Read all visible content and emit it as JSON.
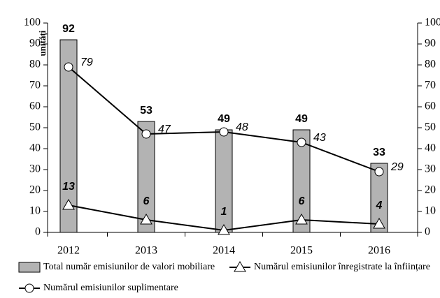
{
  "chart_data": {
    "type": "bar_line",
    "y_label": "unități",
    "categories": [
      "2012",
      "2013",
      "2014",
      "2015",
      "2016"
    ],
    "series": [
      {
        "name": "Total număr emisiunilor de valori mobiliare",
        "type": "bar",
        "color": "#b3b3b3",
        "values": [
          92,
          53,
          49,
          49,
          33
        ]
      },
      {
        "name": "Numărul emisiunilor înregistrate la înființare",
        "type": "line",
        "marker": "triangle",
        "color": "#000000",
        "values": [
          13,
          6,
          1,
          6,
          4
        ]
      },
      {
        "name": "Numărul emisiunilor suplimentare",
        "type": "line",
        "marker": "circle",
        "color": "#000000",
        "values": [
          79,
          47,
          48,
          43,
          29
        ]
      }
    ],
    "ylim": [
      0,
      100
    ],
    "yticks": [
      0,
      10,
      20,
      30,
      40,
      50,
      60,
      70,
      80,
      90,
      100
    ],
    "y2lim": [
      0,
      100
    ],
    "y2ticks": [
      0,
      10,
      20,
      30,
      40,
      50,
      60,
      70,
      80,
      90,
      100
    ],
    "legend": "bottom"
  }
}
